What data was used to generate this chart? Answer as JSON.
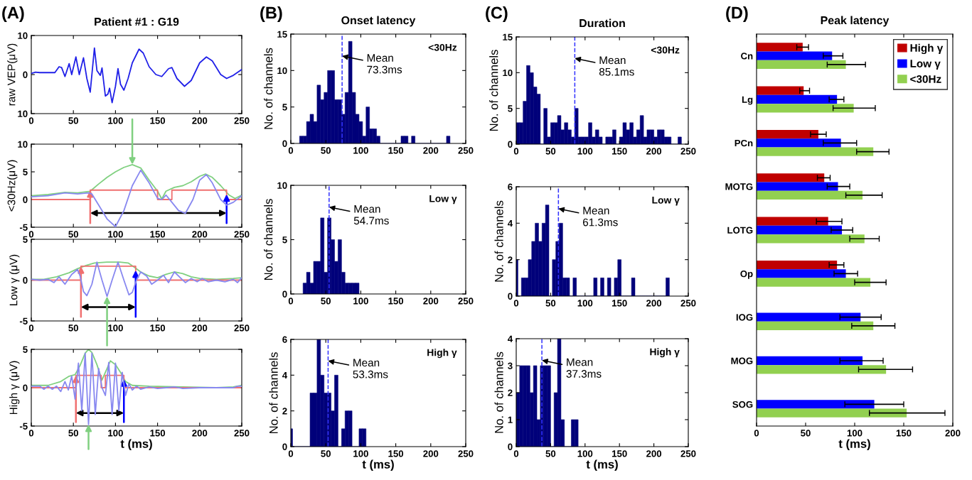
{
  "chart_data": [
    {
      "type": "line",
      "title": "Patient #1 : G19",
      "ylabel": "raw VEP(μV)",
      "annotations": [
        "(A)"
      ],
      "xlim": [
        0,
        250
      ],
      "xticks": [
        0,
        50,
        100,
        150,
        200,
        250
      ],
      "ylim": [
        -10,
        10
      ],
      "yticks": [
        {
          "value": -10,
          "label": "10"
        },
        0,
        10
      ],
      "series": [
        {
          "color": "#2020e8",
          "x": [
            0,
            5,
            10,
            20,
            28,
            33,
            36,
            40,
            45,
            48,
            53,
            57,
            62,
            66,
            70,
            75,
            78,
            82,
            84,
            88,
            91,
            93,
            96,
            100,
            103,
            106,
            110,
            115,
            120,
            128,
            133,
            140,
            148,
            155,
            163,
            167,
            173,
            182,
            190,
            200,
            208,
            215,
            225,
            232,
            240,
            250
          ],
          "values": [
            0.3,
            0.6,
            0.5,
            0.5,
            0.5,
            2.0,
            1.8,
            -0.5,
            2.8,
            0,
            4.5,
            0,
            4.3,
            -1,
            -4.5,
            6.8,
            1,
            -0.2,
            1.7,
            -5.5,
            -5,
            -3.5,
            -7.2,
            -3,
            1.5,
            -2.5,
            -4,
            -1,
            3,
            6.5,
            5.5,
            2,
            0,
            -0.5,
            1.5,
            1.8,
            -1,
            -3,
            -1.5,
            3,
            4.5,
            3.5,
            0,
            -1,
            -0.2,
            1.3
          ]
        }
      ]
    },
    {
      "type": "line",
      "ylabel": "<30Hz(μV)",
      "xlim": [
        0,
        250
      ],
      "xticks": [
        0,
        50,
        100,
        150,
        200,
        250
      ],
      "ylim": [
        -5,
        10
      ],
      "yticks": [
        -5,
        0,
        5,
        10
      ],
      "series": [
        {
          "color": "#8888f0",
          "x": [
            0,
            20,
            40,
            55,
            68,
            72,
            80,
            90,
            100,
            110,
            120,
            130,
            140,
            150,
            155,
            160,
            167,
            175,
            183,
            192,
            200,
            208,
            215,
            225,
            232,
            240,
            250
          ],
          "values": [
            0.5,
            0.7,
            1.2,
            1.0,
            1.2,
            1.0,
            -1,
            -3.5,
            -4.9,
            -2,
            2.5,
            5.3,
            3,
            0.2,
            0,
            0.8,
            -0.5,
            -2,
            -2.5,
            0,
            3.5,
            4.5,
            3,
            0,
            -1,
            -0.5,
            0.7
          ]
        },
        {
          "color": "#80d080",
          "x": [
            0,
            20,
            40,
            55,
            70,
            80,
            90,
            100,
            110,
            120,
            130,
            140,
            150,
            155,
            160,
            170,
            180,
            190,
            200,
            207,
            215,
            225,
            235,
            242,
            250
          ],
          "values": [
            0.7,
            0.9,
            1.3,
            1.2,
            1.5,
            2.8,
            4,
            5,
            5.8,
            6.3,
            5.7,
            3.5,
            1.5,
            0.1,
            1.5,
            2.2,
            2.5,
            3.2,
            4.2,
            4.6,
            4,
            2.5,
            0.8,
            0.2,
            0.8
          ]
        },
        {
          "color": "#f07070",
          "x": [
            0,
            70,
            70,
            150,
            150,
            167,
            167,
            232,
            232,
            250
          ],
          "values": [
            0,
            0,
            1.7,
            1.7,
            0,
            0,
            1.7,
            1.7,
            0,
            0
          ]
        }
      ]
    },
    {
      "type": "line",
      "ylabel": "Low γ (μV)",
      "xlim": [
        0,
        250
      ],
      "xticks": [
        0,
        50,
        100,
        150,
        200,
        250
      ],
      "ylim": [
        -5,
        5
      ],
      "yticks": [
        -5,
        0,
        5
      ],
      "series": [
        {
          "color": "#8888f0",
          "x": [
            0,
            10,
            20,
            27,
            33,
            40,
            48,
            55,
            58,
            62,
            66,
            72,
            78,
            84,
            90,
            96,
            103,
            110,
            116,
            120,
            125,
            130,
            137,
            143,
            150,
            157,
            163,
            170,
            177,
            183,
            190,
            197,
            203,
            210,
            220,
            230,
            240,
            245,
            250
          ],
          "values": [
            0.1,
            0,
            0.1,
            -0.3,
            0.4,
            -0.5,
            0.7,
            1.3,
            0.5,
            -1.4,
            -1.9,
            -0.5,
            2.2,
            0,
            -2.0,
            0,
            2.2,
            0,
            -1.8,
            -1.5,
            0,
            1.0,
            0.5,
            -0.5,
            0,
            0.6,
            -0.3,
            1.0,
            0.3,
            -0.3,
            0.2,
            -0.2,
            0.2,
            -0.2,
            0,
            -0.2,
            0.1,
            -0.3,
            0.3
          ]
        },
        {
          "color": "#80d080",
          "x": [
            0,
            15,
            30,
            45,
            55,
            65,
            75,
            90,
            105,
            115,
            122,
            130,
            140,
            150,
            160,
            170,
            180,
            190,
            200,
            220,
            240,
            250
          ],
          "values": [
            0.1,
            0.1,
            0.4,
            0.9,
            1.4,
            1.8,
            2.1,
            2.2,
            2.2,
            2.1,
            1.6,
            1.0,
            0.5,
            0.3,
            0.7,
            1.0,
            0.8,
            0.4,
            0.2,
            0.1,
            0.2,
            0.3
          ]
        },
        {
          "color": "#f07070",
          "x": [
            0,
            59,
            59,
            124,
            124,
            250
          ],
          "values": [
            0,
            0,
            1.7,
            1.7,
            0,
            0
          ]
        }
      ]
    },
    {
      "type": "line",
      "ylabel": "High γ (μV)",
      "xlabel": "t (ms)",
      "xlim": [
        0,
        250
      ],
      "xticks": [
        0,
        50,
        100,
        150,
        200,
        250
      ],
      "ylim": [
        -5,
        5
      ],
      "yticks": [
        -5,
        0,
        5
      ],
      "series": [
        {
          "color": "#8888f0",
          "x": [
            0,
            10,
            15,
            20,
            25,
            30,
            35,
            40,
            44,
            48,
            52,
            56,
            60,
            64,
            68,
            72,
            76,
            80,
            84,
            88,
            92,
            96,
            100,
            104,
            108,
            112,
            116,
            120,
            125,
            130,
            140,
            150,
            160,
            170,
            180,
            200,
            220,
            240,
            245,
            250
          ],
          "values": [
            0.2,
            0.2,
            -0.2,
            0.2,
            -0.2,
            0.2,
            -0.5,
            0.8,
            -0.3,
            1.5,
            -1.5,
            3.2,
            -3,
            4.5,
            -4.8,
            4.5,
            -3.5,
            2.5,
            0,
            -1,
            3.3,
            -3.5,
            3.2,
            -3,
            2,
            -1,
            0.5,
            -0.3,
            0.2,
            -0.2,
            0.1,
            -0.1,
            0,
            0.1,
            -0.1,
            0,
            0,
            0,
            0.2,
            0.2
          ]
        },
        {
          "color": "#80d080",
          "x": [
            0,
            20,
            35,
            45,
            52,
            58,
            64,
            68,
            72,
            78,
            84,
            88,
            94,
            100,
            106,
            112,
            120,
            140,
            180,
            220,
            240,
            250
          ],
          "values": [
            0.3,
            0.3,
            0.8,
            1.5,
            1.7,
            2.9,
            4.5,
            5,
            4.6,
            3,
            1.0,
            2.0,
            3.5,
            3,
            2,
            0.8,
            0.3,
            0.2,
            0.1,
            0,
            0.1,
            0.3
          ]
        },
        {
          "color": "#f07070",
          "x": [
            0,
            53,
            53,
            83,
            83,
            88,
            88,
            110,
            110,
            250
          ],
          "values": [
            0,
            0,
            1.6,
            1.6,
            0,
            0,
            1.6,
            1.6,
            0,
            0
          ]
        }
      ]
    },
    {
      "type": "histogram",
      "title": "Onset latency",
      "ylabel": "No. of channels",
      "annotations": [
        "(B)",
        "<30Hz"
      ],
      "color": "#00007a",
      "xlim": [
        0,
        250
      ],
      "xticks": [
        0,
        50,
        100,
        150,
        200,
        250
      ],
      "ylim": [
        0,
        15
      ],
      "yticks": [
        0,
        5,
        10,
        15
      ],
      "bins": [
        12.5,
        17.5,
        22.5,
        27.5,
        32.5,
        37.5,
        42.5,
        47.5,
        52.5,
        57.5,
        62.5,
        67.5,
        72.5,
        77.5,
        82.5,
        87.5,
        92.5,
        97.5,
        102.5,
        107.5,
        112.5,
        117.5,
        122.5,
        127.5,
        132.5,
        137.5,
        142.5,
        147.5,
        152.5,
        157.5,
        162.5,
        167.5,
        172.5,
        177.5,
        182.5,
        187.5,
        192.5,
        197.5,
        202.5,
        207.5,
        212.5,
        217.5,
        222.5,
        227.5
      ],
      "values": [
        1,
        1,
        3,
        4,
        3,
        8,
        6,
        7,
        10,
        10,
        6,
        6,
        4,
        7,
        14,
        7,
        4,
        3,
        1,
        5,
        2,
        2,
        1,
        0,
        0,
        0,
        0,
        0,
        0,
        1,
        1,
        0,
        1,
        0,
        0,
        0,
        0,
        0,
        0,
        0,
        0,
        0,
        1
      ],
      "ref_lines": [
        {
          "axis": "x",
          "value": 73.3,
          "label": "Mean\n73.3ms",
          "color": "#3333ff",
          "line_style": "dashed"
        }
      ]
    },
    {
      "type": "histogram",
      "ylabel": "No. of channels",
      "annotations": [
        "Low γ"
      ],
      "color": "#00007a",
      "xlim": [
        0,
        250
      ],
      "xticks": [
        0,
        50,
        100,
        150,
        200,
        250
      ],
      "ylim": [
        0,
        10
      ],
      "yticks": [
        0,
        5,
        10
      ],
      "bins": [
        17.5,
        22.5,
        27.5,
        32.5,
        37.5,
        42.5,
        47.5,
        52.5,
        57.5,
        62.5,
        67.5,
        72.5,
        77.5,
        82.5,
        87.5,
        92.5,
        97.5
      ],
      "values": [
        1,
        2,
        1,
        3,
        3,
        7,
        2,
        7,
        5,
        3,
        5,
        2,
        1,
        1,
        1,
        1
      ],
      "ref_lines": [
        {
          "axis": "x",
          "value": 54.7,
          "label": "Mean\n54.7ms",
          "color": "#3333ff",
          "line_style": "dashed"
        }
      ]
    },
    {
      "type": "histogram",
      "ylabel": "No. of channels",
      "xlabel": "t (ms)",
      "annotations": [
        "High γ"
      ],
      "color": "#00007a",
      "xlim": [
        0,
        250
      ],
      "xticks": [
        0,
        50,
        100,
        150,
        200,
        250
      ],
      "ylim": [
        0,
        6
      ],
      "yticks": [
        0,
        2,
        4,
        6
      ],
      "bins": [
        0,
        2.5,
        27.5,
        32.5,
        37.5,
        42.5,
        47.5,
        52.5,
        57.5,
        62.5,
        67.5,
        72.5,
        77.5,
        82.5,
        87.5,
        92.5,
        97.5,
        102.5,
        107.5
      ],
      "values": [
        1,
        0,
        3,
        3,
        6,
        4,
        3,
        3,
        2,
        4,
        0,
        1,
        2,
        2,
        0,
        0,
        1,
        1
      ],
      "ref_lines": [
        {
          "axis": "x",
          "value": 53.3,
          "label": "Mean\n53.3ms",
          "color": "#3333ff",
          "line_style": "dashed"
        }
      ]
    },
    {
      "type": "histogram",
      "title": "Duration",
      "ylabel": "No. of channels",
      "annotations": [
        "(C)",
        "<30Hz"
      ],
      "color": "#00007a",
      "xlim": [
        0,
        250
      ],
      "xticks": [
        0,
        50,
        100,
        150,
        200,
        250
      ],
      "ylim": [
        0,
        15
      ],
      "yticks": [
        0,
        5,
        10,
        15
      ],
      "bins": [
        0,
        5,
        10,
        15,
        20,
        25,
        30,
        35,
        40,
        45,
        50,
        55,
        60,
        65,
        70,
        75,
        80,
        85,
        90,
        95,
        100,
        105,
        110,
        115,
        120,
        125,
        130,
        135,
        140,
        145,
        150,
        155,
        160,
        165,
        170,
        175,
        180,
        185,
        190,
        195,
        200,
        205,
        210,
        215,
        220,
        225,
        230,
        235,
        240
      ],
      "values": [
        3,
        3,
        6,
        11,
        10,
        8,
        7,
        0,
        5,
        1,
        3,
        3,
        4,
        2,
        3,
        2,
        1,
        5,
        1,
        1,
        1,
        3,
        1,
        2,
        1,
        0,
        1,
        1,
        2,
        0,
        1,
        3,
        2,
        3,
        1,
        2,
        4,
        1,
        2,
        2,
        1,
        2,
        2,
        1,
        1,
        0,
        0,
        1
      ],
      "ref_lines": [
        {
          "axis": "x",
          "value": 85.1,
          "label": "Mean\n85.1ms",
          "color": "#3333ff",
          "line_style": "dashed"
        }
      ]
    },
    {
      "type": "histogram",
      "ylabel": "No. of channels",
      "annotations": [
        "Low γ"
      ],
      "color": "#00007a",
      "xlim": [
        0,
        250
      ],
      "xticks": [
        0,
        50,
        100,
        150,
        200,
        250
      ],
      "ylim": [
        0,
        6
      ],
      "yticks": [
        0,
        2,
        4,
        6
      ],
      "bins": [
        0,
        2.5,
        7.5,
        12.5,
        17.5,
        22.5,
        27.5,
        32.5,
        37.5,
        42.5,
        47.5,
        52.5,
        57.5,
        62.5,
        67.5,
        72.5,
        77.5,
        82.5,
        87.5,
        92.5,
        97.5,
        102.5,
        107.5,
        112.5,
        117.5,
        122.5,
        127.5,
        132.5,
        137.5,
        142.5,
        147.5,
        152.5,
        157.5,
        162.5,
        167.5,
        172.5,
        177.5,
        182.5,
        187.5,
        192.5,
        197.5,
        202.5,
        207.5,
        212.5,
        217.5,
        222.5
      ],
      "values": [
        2,
        0,
        1,
        1,
        2,
        3,
        4,
        3,
        4,
        5,
        0,
        2,
        3,
        4,
        1,
        1,
        0,
        1,
        0,
        0,
        0,
        0,
        0,
        1,
        0,
        1,
        0,
        1,
        0,
        1,
        2,
        0,
        0,
        0,
        1,
        0,
        0,
        0,
        0,
        0,
        0,
        0,
        0,
        0,
        1
      ],
      "ref_lines": [
        {
          "axis": "x",
          "value": 61.3,
          "label": "Mean\n61.3ms",
          "color": "#3333ff",
          "line_style": "dashed"
        }
      ]
    },
    {
      "type": "histogram",
      "ylabel": "No. of channels",
      "xlabel": "t (ms)",
      "annotations": [
        "High γ"
      ],
      "color": "#00007a",
      "xlim": [
        0,
        250
      ],
      "xticks": [
        0,
        50,
        100,
        150,
        200,
        250
      ],
      "ylim": [
        0,
        4
      ],
      "yticks": [
        0,
        1,
        2,
        3,
        4
      ],
      "bins": [
        0,
        5,
        10,
        15,
        20,
        25,
        30,
        35,
        40,
        45,
        50,
        55,
        60,
        65,
        70,
        75,
        80,
        85,
        90
      ],
      "values": [
        2,
        3,
        3,
        3,
        2,
        3,
        1,
        3,
        3,
        3,
        0,
        2,
        4,
        1,
        0,
        0,
        1,
        1
      ],
      "ref_lines": [
        {
          "axis": "x",
          "value": 37.3,
          "label": "Mean\n37.3ms",
          "color": "#3333ff",
          "line_style": "dashed"
        }
      ]
    },
    {
      "type": "bar",
      "orientation": "horizontal",
      "title": "Peak latency",
      "xlabel": "t (ms)",
      "annotations": [
        "(D)"
      ],
      "legend": "top right",
      "xlim": [
        0,
        200
      ],
      "xticks": [
        0,
        50,
        100,
        150,
        200
      ],
      "categories": [
        "Cn",
        "Lg",
        "PCn",
        "MOTG",
        "LOTG",
        "Op",
        "IOG",
        "MOG",
        "SOG"
      ],
      "series": [
        {
          "name": "High γ",
          "color": "#c00000",
          "values": [
            47,
            48,
            63,
            69,
            73,
            82,
            null,
            null,
            null
          ],
          "errors": [
            [
              41,
              53
            ],
            [
              44,
              54
            ],
            [
              55,
              71
            ],
            [
              62,
              75
            ],
            [
              61,
              87
            ],
            [
              74,
              89
            ],
            null,
            null,
            null
          ]
        },
        {
          "name": "Low γ",
          "color": "#0000ff",
          "values": [
            77,
            82,
            86,
            83,
            87,
            91,
            106,
            108,
            120
          ],
          "errors": [
            [
              68,
              88
            ],
            [
              74,
              89
            ],
            [
              68,
              102
            ],
            [
              72,
              95
            ],
            [
              76,
              98
            ],
            [
              79,
              103
            ],
            [
              85,
              127
            ],
            [
              85,
              129
            ],
            [
              90,
              150
            ]
          ]
        },
        {
          "name": "<30Hz",
          "color": "#92d050",
          "values": [
            91,
            99,
            119,
            108,
            110,
            116,
            119,
            132,
            153
          ],
          "errors": [
            [
              72,
              111
            ],
            [
              78,
              121
            ],
            [
              102,
              135
            ],
            [
              91,
              128
            ],
            [
              95,
              125
            ],
            [
              100,
              132
            ],
            [
              97,
              141
            ],
            [
              104,
              159
            ],
            [
              115,
              192
            ]
          ]
        }
      ]
    }
  ]
}
